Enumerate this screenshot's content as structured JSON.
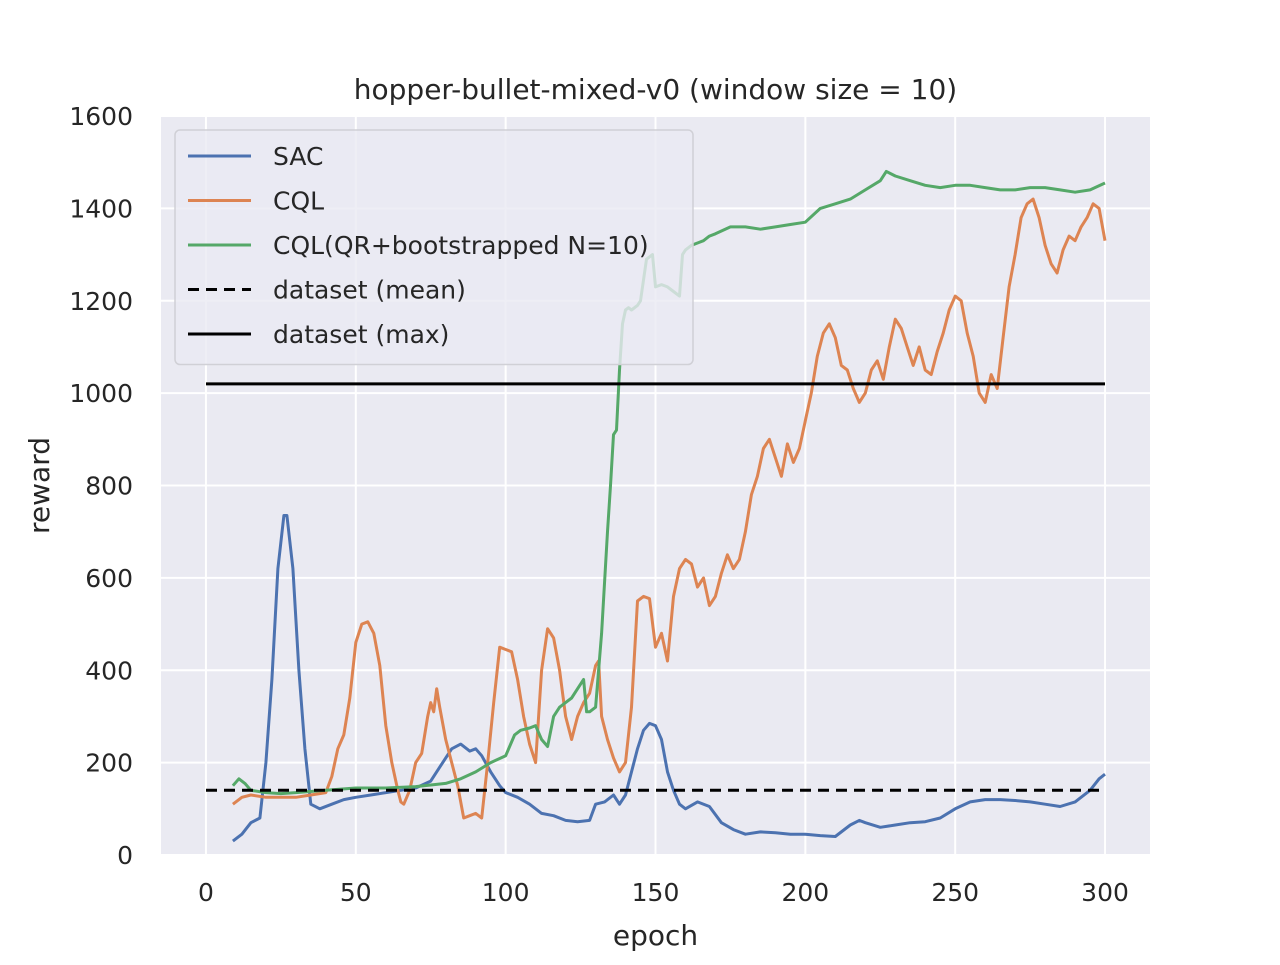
{
  "chart_data": {
    "type": "line",
    "title": "hopper-bullet-mixed-v0 (window size = 10)",
    "xlabel": "epoch",
    "ylabel": "reward",
    "xlim": [
      -15,
      315
    ],
    "ylim": [
      0,
      1600
    ],
    "xticks": [
      0,
      50,
      100,
      150,
      200,
      250,
      300
    ],
    "yticks": [
      0,
      200,
      400,
      600,
      800,
      1000,
      1200,
      1400,
      1600
    ],
    "grid": true,
    "background": "#eaeaf2",
    "legend": {
      "placement": "top-left"
    },
    "series": [
      {
        "name": "SAC",
        "color": "#4c72b0",
        "style": "solid",
        "points": [
          [
            9,
            30
          ],
          [
            12,
            45
          ],
          [
            15,
            70
          ],
          [
            18,
            80
          ],
          [
            20,
            200
          ],
          [
            22,
            380
          ],
          [
            24,
            620
          ],
          [
            26,
            735
          ],
          [
            27,
            735
          ],
          [
            29,
            620
          ],
          [
            31,
            400
          ],
          [
            33,
            230
          ],
          [
            35,
            110
          ],
          [
            38,
            100
          ],
          [
            42,
            110
          ],
          [
            46,
            120
          ],
          [
            50,
            125
          ],
          [
            55,
            130
          ],
          [
            60,
            135
          ],
          [
            65,
            140
          ],
          [
            70,
            145
          ],
          [
            75,
            160
          ],
          [
            78,
            190
          ],
          [
            82,
            230
          ],
          [
            85,
            240
          ],
          [
            88,
            225
          ],
          [
            90,
            230
          ],
          [
            92,
            215
          ],
          [
            95,
            180
          ],
          [
            98,
            150
          ],
          [
            100,
            135
          ],
          [
            104,
            125
          ],
          [
            108,
            110
          ],
          [
            112,
            90
          ],
          [
            116,
            85
          ],
          [
            120,
            75
          ],
          [
            124,
            72
          ],
          [
            128,
            75
          ],
          [
            130,
            110
          ],
          [
            133,
            115
          ],
          [
            136,
            130
          ],
          [
            138,
            110
          ],
          [
            140,
            130
          ],
          [
            142,
            180
          ],
          [
            144,
            230
          ],
          [
            146,
            270
          ],
          [
            148,
            285
          ],
          [
            150,
            280
          ],
          [
            152,
            250
          ],
          [
            154,
            180
          ],
          [
            156,
            140
          ],
          [
            158,
            110
          ],
          [
            160,
            100
          ],
          [
            164,
            115
          ],
          [
            168,
            105
          ],
          [
            172,
            70
          ],
          [
            176,
            55
          ],
          [
            180,
            45
          ],
          [
            185,
            50
          ],
          [
            190,
            48
          ],
          [
            195,
            45
          ],
          [
            200,
            45
          ],
          [
            205,
            42
          ],
          [
            210,
            40
          ],
          [
            215,
            65
          ],
          [
            218,
            75
          ],
          [
            220,
            70
          ],
          [
            225,
            60
          ],
          [
            230,
            65
          ],
          [
            235,
            70
          ],
          [
            240,
            72
          ],
          [
            245,
            80
          ],
          [
            250,
            100
          ],
          [
            255,
            115
          ],
          [
            260,
            120
          ],
          [
            265,
            120
          ],
          [
            270,
            118
          ],
          [
            275,
            115
          ],
          [
            280,
            110
          ],
          [
            285,
            105
          ],
          [
            290,
            115
          ],
          [
            295,
            140
          ],
          [
            298,
            165
          ],
          [
            300,
            175
          ]
        ]
      },
      {
        "name": "CQL",
        "color": "#dd8452",
        "style": "solid",
        "points": [
          [
            9,
            110
          ],
          [
            12,
            125
          ],
          [
            15,
            130
          ],
          [
            20,
            125
          ],
          [
            25,
            125
          ],
          [
            30,
            125
          ],
          [
            35,
            130
          ],
          [
            40,
            135
          ],
          [
            42,
            170
          ],
          [
            44,
            230
          ],
          [
            46,
            260
          ],
          [
            48,
            340
          ],
          [
            50,
            460
          ],
          [
            52,
            500
          ],
          [
            54,
            505
          ],
          [
            56,
            480
          ],
          [
            58,
            410
          ],
          [
            60,
            280
          ],
          [
            62,
            200
          ],
          [
            64,
            140
          ],
          [
            65,
            115
          ],
          [
            66,
            110
          ],
          [
            68,
            140
          ],
          [
            70,
            200
          ],
          [
            72,
            220
          ],
          [
            74,
            300
          ],
          [
            75,
            330
          ],
          [
            76,
            310
          ],
          [
            77,
            360
          ],
          [
            78,
            320
          ],
          [
            80,
            250
          ],
          [
            82,
            200
          ],
          [
            84,
            150
          ],
          [
            86,
            80
          ],
          [
            88,
            85
          ],
          [
            90,
            90
          ],
          [
            92,
            80
          ],
          [
            94,
            200
          ],
          [
            96,
            330
          ],
          [
            98,
            450
          ],
          [
            100,
            445
          ],
          [
            102,
            440
          ],
          [
            104,
            380
          ],
          [
            106,
            300
          ],
          [
            108,
            240
          ],
          [
            110,
            200
          ],
          [
            112,
            400
          ],
          [
            114,
            490
          ],
          [
            116,
            470
          ],
          [
            118,
            400
          ],
          [
            120,
            300
          ],
          [
            122,
            250
          ],
          [
            124,
            300
          ],
          [
            126,
            330
          ],
          [
            128,
            350
          ],
          [
            130,
            410
          ],
          [
            131,
            420
          ],
          [
            132,
            300
          ],
          [
            134,
            250
          ],
          [
            136,
            210
          ],
          [
            138,
            180
          ],
          [
            140,
            200
          ],
          [
            142,
            320
          ],
          [
            144,
            550
          ],
          [
            146,
            560
          ],
          [
            148,
            555
          ],
          [
            150,
            450
          ],
          [
            152,
            480
          ],
          [
            154,
            420
          ],
          [
            156,
            560
          ],
          [
            158,
            620
          ],
          [
            160,
            640
          ],
          [
            162,
            630
          ],
          [
            164,
            580
          ],
          [
            166,
            600
          ],
          [
            168,
            540
          ],
          [
            170,
            560
          ],
          [
            172,
            610
          ],
          [
            174,
            650
          ],
          [
            176,
            620
          ],
          [
            178,
            640
          ],
          [
            180,
            700
          ],
          [
            182,
            780
          ],
          [
            184,
            820
          ],
          [
            186,
            880
          ],
          [
            188,
            900
          ],
          [
            190,
            860
          ],
          [
            192,
            820
          ],
          [
            194,
            890
          ],
          [
            196,
            850
          ],
          [
            198,
            880
          ],
          [
            200,
            940
          ],
          [
            202,
            1000
          ],
          [
            204,
            1080
          ],
          [
            206,
            1130
          ],
          [
            208,
            1150
          ],
          [
            210,
            1120
          ],
          [
            212,
            1060
          ],
          [
            214,
            1050
          ],
          [
            216,
            1010
          ],
          [
            218,
            980
          ],
          [
            220,
            1000
          ],
          [
            222,
            1050
          ],
          [
            224,
            1070
          ],
          [
            226,
            1030
          ],
          [
            228,
            1100
          ],
          [
            230,
            1160
          ],
          [
            232,
            1140
          ],
          [
            234,
            1100
          ],
          [
            236,
            1060
          ],
          [
            238,
            1100
          ],
          [
            240,
            1050
          ],
          [
            242,
            1040
          ],
          [
            244,
            1090
          ],
          [
            246,
            1130
          ],
          [
            248,
            1180
          ],
          [
            250,
            1210
          ],
          [
            252,
            1200
          ],
          [
            254,
            1130
          ],
          [
            256,
            1080
          ],
          [
            258,
            1000
          ],
          [
            260,
            980
          ],
          [
            262,
            1040
          ],
          [
            264,
            1010
          ],
          [
            266,
            1120
          ],
          [
            268,
            1230
          ],
          [
            270,
            1300
          ],
          [
            272,
            1380
          ],
          [
            274,
            1410
          ],
          [
            276,
            1420
          ],
          [
            278,
            1380
          ],
          [
            280,
            1320
          ],
          [
            282,
            1280
          ],
          [
            284,
            1260
          ],
          [
            286,
            1310
          ],
          [
            288,
            1340
          ],
          [
            290,
            1330
          ],
          [
            292,
            1360
          ],
          [
            294,
            1380
          ],
          [
            296,
            1410
          ],
          [
            298,
            1400
          ],
          [
            300,
            1330
          ]
        ]
      },
      {
        "name": "CQL(QR+bootstrapped N=10)",
        "color": "#55a868",
        "style": "solid",
        "points": [
          [
            9,
            150
          ],
          [
            11,
            165
          ],
          [
            13,
            155
          ],
          [
            15,
            140
          ],
          [
            20,
            135
          ],
          [
            25,
            133
          ],
          [
            30,
            135
          ],
          [
            40,
            140
          ],
          [
            50,
            145
          ],
          [
            60,
            145
          ],
          [
            70,
            148
          ],
          [
            80,
            155
          ],
          [
            85,
            165
          ],
          [
            90,
            180
          ],
          [
            95,
            200
          ],
          [
            100,
            215
          ],
          [
            103,
            260
          ],
          [
            105,
            270
          ],
          [
            108,
            275
          ],
          [
            110,
            280
          ],
          [
            112,
            250
          ],
          [
            114,
            235
          ],
          [
            116,
            300
          ],
          [
            118,
            320
          ],
          [
            120,
            330
          ],
          [
            122,
            340
          ],
          [
            124,
            360
          ],
          [
            126,
            380
          ],
          [
            127,
            310
          ],
          [
            128,
            310
          ],
          [
            130,
            320
          ],
          [
            132,
            480
          ],
          [
            134,
            700
          ],
          [
            135,
            800
          ],
          [
            136,
            910
          ],
          [
            137,
            920
          ],
          [
            138,
            1050
          ],
          [
            139,
            1150
          ],
          [
            140,
            1180
          ],
          [
            141,
            1185
          ],
          [
            142,
            1180
          ],
          [
            144,
            1190
          ],
          [
            145,
            1200
          ],
          [
            147,
            1290
          ],
          [
            149,
            1300
          ],
          [
            150,
            1230
          ],
          [
            152,
            1235
          ],
          [
            154,
            1230
          ],
          [
            156,
            1220
          ],
          [
            158,
            1210
          ],
          [
            159,
            1300
          ],
          [
            160,
            1310
          ],
          [
            162,
            1320
          ],
          [
            164,
            1325
          ],
          [
            166,
            1330
          ],
          [
            168,
            1340
          ],
          [
            170,
            1345
          ],
          [
            175,
            1360
          ],
          [
            180,
            1360
          ],
          [
            185,
            1355
          ],
          [
            190,
            1360
          ],
          [
            195,
            1365
          ],
          [
            200,
            1370
          ],
          [
            205,
            1400
          ],
          [
            210,
            1410
          ],
          [
            215,
            1420
          ],
          [
            220,
            1440
          ],
          [
            225,
            1460
          ],
          [
            227,
            1480
          ],
          [
            230,
            1470
          ],
          [
            235,
            1460
          ],
          [
            240,
            1450
          ],
          [
            245,
            1445
          ],
          [
            250,
            1450
          ],
          [
            255,
            1450
          ],
          [
            260,
            1445
          ],
          [
            265,
            1440
          ],
          [
            270,
            1440
          ],
          [
            275,
            1445
          ],
          [
            280,
            1445
          ],
          [
            285,
            1440
          ],
          [
            290,
            1435
          ],
          [
            295,
            1440
          ],
          [
            300,
            1455
          ]
        ]
      },
      {
        "name": "dataset (mean)",
        "color": "#000000",
        "style": "dashed",
        "points": [
          [
            0,
            140
          ],
          [
            300,
            140
          ]
        ]
      },
      {
        "name": "dataset (max)",
        "color": "#000000",
        "style": "solid",
        "points": [
          [
            0,
            1020
          ],
          [
            300,
            1020
          ]
        ]
      }
    ]
  }
}
